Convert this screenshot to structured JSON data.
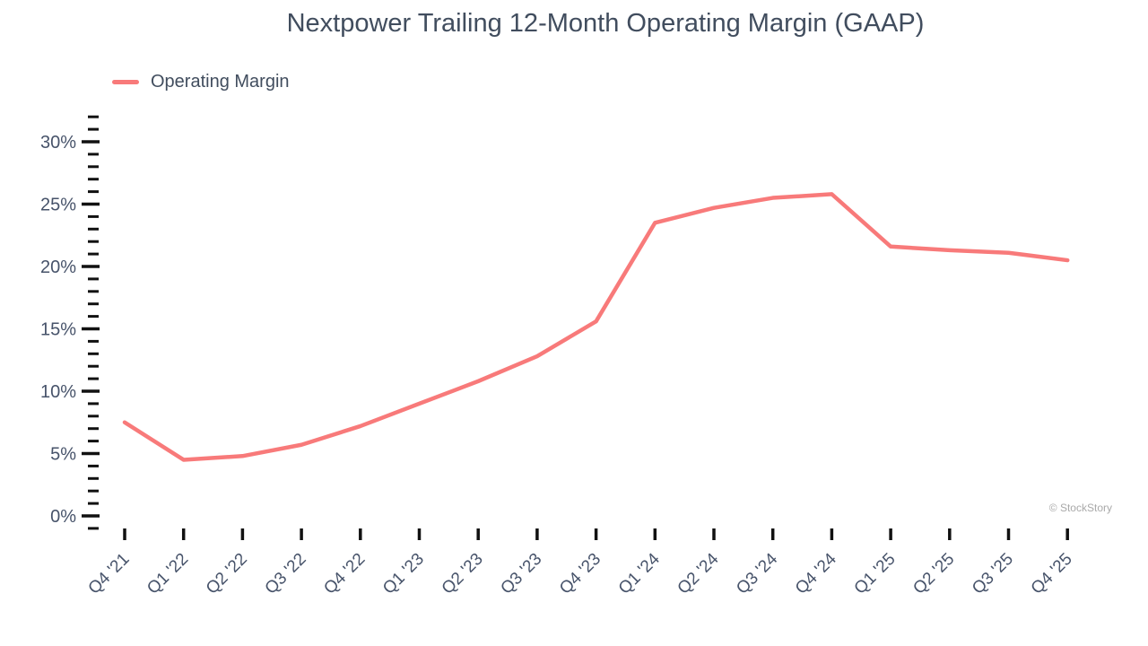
{
  "watermark": "© StockStory",
  "chart_data": {
    "type": "line",
    "title": "Nextpower Trailing 12-Month Operating Margin (GAAP)",
    "legend": "Operating Margin",
    "categories": [
      "Q4 '21",
      "Q1 '22",
      "Q2 '22",
      "Q3 '22",
      "Q4 '22",
      "Q1 '23",
      "Q2 '23",
      "Q3 '23",
      "Q4 '23",
      "Q1 '24",
      "Q2 '24",
      "Q3 '24",
      "Q4 '24",
      "Q1 '25",
      "Q2 '25",
      "Q3 '25",
      "Q4 '25"
    ],
    "series": [
      {
        "name": "Operating Margin",
        "unit": "%",
        "values": [
          7.5,
          4.5,
          4.8,
          5.7,
          7.2,
          9.0,
          10.8,
          12.8,
          15.6,
          23.5,
          24.7,
          25.5,
          25.8,
          21.6,
          21.3,
          21.1,
          20.5
        ]
      }
    ],
    "xlabel": "",
    "ylabel": "",
    "ylim": [
      -1,
      32
    ],
    "y_major_step": 5,
    "y_minor_step": 1,
    "y_major_min": 0,
    "y_major_max": 30,
    "y_tick_labels": [
      "0%",
      "5%",
      "10%",
      "15%",
      "20%",
      "25%",
      "30%"
    ],
    "grid": false,
    "legend_position": "top-left",
    "line_color": "#F87A7A",
    "label_color": "#47536A",
    "tick_color": "#111111"
  }
}
